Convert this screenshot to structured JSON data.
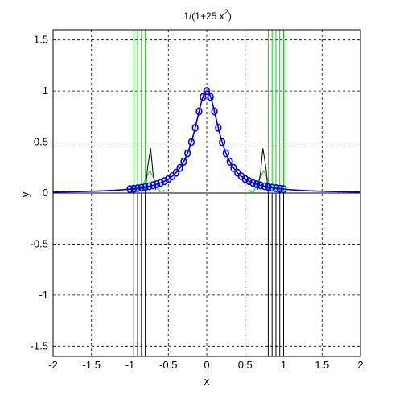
{
  "chart_data": {
    "type": "line",
    "title": "1/(1+25 x",
    "title_superscript": "2",
    "title_suffix": ")",
    "xlabel": "x",
    "ylabel": "y",
    "xlim": [
      -2,
      2
    ],
    "ylim": [
      -1.6,
      1.6
    ],
    "grid": true,
    "x_ticks": [
      -2,
      -1.5,
      -1,
      -0.5,
      0,
      0.5,
      1,
      1.5,
      2
    ],
    "x_tick_labels": [
      "-2",
      "-1.5",
      "-1",
      "-0.5",
      "0",
      "0.5",
      "1",
      "1.5",
      "2"
    ],
    "y_ticks": [
      1.5,
      1,
      0.5,
      0,
      -0.5,
      -1,
      -1.5
    ],
    "y_tick_labels": [
      "1.5",
      "1",
      "0.5",
      "0",
      "-0.5",
      "-1",
      "-1.5"
    ],
    "series": [
      {
        "kind": "function",
        "formula": "1/(1+25x^2)",
        "domain": [
          -2,
          2
        ],
        "color": "#0000cc",
        "markers": "none"
      },
      {
        "kind": "sample_points",
        "x_start": -1,
        "x_end": 1,
        "count": 41,
        "color": "#0000ff",
        "markers": "circle"
      },
      {
        "kind": "interpolant",
        "color": "#00dd00",
        "x_positions": [
          -1,
          -0.95,
          -0.9,
          -0.85,
          -0.8,
          0.8,
          0.85,
          0.9,
          0.95,
          1
        ],
        "peak_at": [
          -0.74,
          0.74
        ]
      },
      {
        "kind": "interpolant",
        "color": "#000000",
        "x_positions": [
          -1,
          -0.95,
          -0.9,
          -0.85,
          -0.8,
          0.8,
          0.85,
          0.9,
          0.95,
          1
        ],
        "peak_at": [
          -0.73,
          0.73
        ],
        "peak_y": 0.44
      }
    ],
    "colors": {
      "axes": "#000000",
      "grid": "#000000",
      "function": "#0000cc",
      "samples": "#0000ff",
      "green": "#00dd00",
      "black": "#000000"
    }
  }
}
